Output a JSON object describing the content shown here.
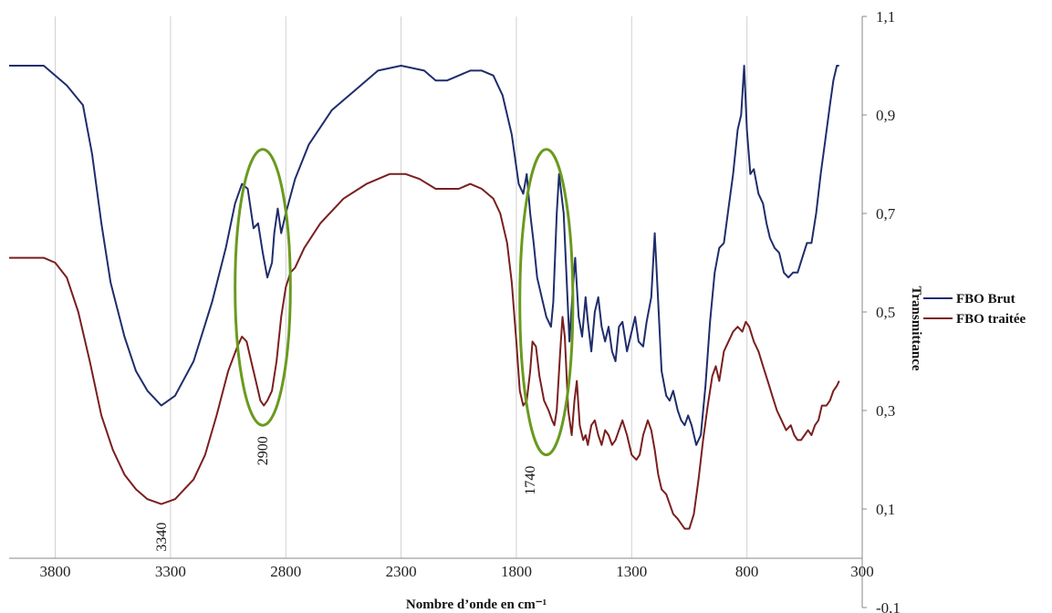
{
  "chart_data": {
    "type": "line",
    "xlabel": "Nombre d’onde en cm⁻¹",
    "ylabel": "Transmittance",
    "xlim": [
      4000,
      300
    ],
    "ylim": [
      -0.1,
      1.1
    ],
    "x_ticks": [
      3800,
      3300,
      2800,
      2300,
      1800,
      1300,
      800,
      300
    ],
    "y_ticks": [
      1.1,
      0.9,
      0.7,
      0.5,
      0.3,
      0.1,
      -0.1
    ],
    "y_tick_labels": [
      "1,1",
      "0,9",
      "0,7",
      "0,5",
      "0,3",
      "0,1",
      "-0,1"
    ],
    "grid": "vertical",
    "legend_position": "right",
    "series": [
      {
        "name": "FBO Brut",
        "color": "#1f2d6b",
        "points": [
          [
            4000,
            1.0
          ],
          [
            3850,
            1.0
          ],
          [
            3750,
            0.96
          ],
          [
            3680,
            0.92
          ],
          [
            3640,
            0.82
          ],
          [
            3600,
            0.68
          ],
          [
            3560,
            0.56
          ],
          [
            3500,
            0.45
          ],
          [
            3450,
            0.38
          ],
          [
            3400,
            0.34
          ],
          [
            3340,
            0.31
          ],
          [
            3280,
            0.33
          ],
          [
            3200,
            0.4
          ],
          [
            3120,
            0.52
          ],
          [
            3060,
            0.63
          ],
          [
            3020,
            0.72
          ],
          [
            2990,
            0.76
          ],
          [
            2965,
            0.75
          ],
          [
            2940,
            0.67
          ],
          [
            2920,
            0.68
          ],
          [
            2900,
            0.62
          ],
          [
            2880,
            0.57
          ],
          [
            2860,
            0.6
          ],
          [
            2850,
            0.66
          ],
          [
            2835,
            0.71
          ],
          [
            2820,
            0.66
          ],
          [
            2800,
            0.7
          ],
          [
            2760,
            0.77
          ],
          [
            2700,
            0.84
          ],
          [
            2600,
            0.91
          ],
          [
            2500,
            0.95
          ],
          [
            2400,
            0.99
          ],
          [
            2300,
            1.0
          ],
          [
            2200,
            0.99
          ],
          [
            2150,
            0.97
          ],
          [
            2100,
            0.97
          ],
          [
            2050,
            0.98
          ],
          [
            2000,
            0.99
          ],
          [
            1950,
            0.99
          ],
          [
            1900,
            0.98
          ],
          [
            1860,
            0.94
          ],
          [
            1820,
            0.86
          ],
          [
            1790,
            0.76
          ],
          [
            1770,
            0.74
          ],
          [
            1755,
            0.78
          ],
          [
            1740,
            0.7
          ],
          [
            1725,
            0.64
          ],
          [
            1710,
            0.57
          ],
          [
            1690,
            0.53
          ],
          [
            1670,
            0.49
          ],
          [
            1650,
            0.47
          ],
          [
            1640,
            0.52
          ],
          [
            1625,
            0.7
          ],
          [
            1615,
            0.78
          ],
          [
            1595,
            0.7
          ],
          [
            1570,
            0.44
          ],
          [
            1555,
            0.55
          ],
          [
            1545,
            0.61
          ],
          [
            1530,
            0.49
          ],
          [
            1515,
            0.45
          ],
          [
            1500,
            0.53
          ],
          [
            1490,
            0.48
          ],
          [
            1475,
            0.42
          ],
          [
            1460,
            0.5
          ],
          [
            1445,
            0.53
          ],
          [
            1430,
            0.47
          ],
          [
            1415,
            0.44
          ],
          [
            1400,
            0.47
          ],
          [
            1385,
            0.42
          ],
          [
            1370,
            0.4
          ],
          [
            1355,
            0.47
          ],
          [
            1340,
            0.48
          ],
          [
            1320,
            0.42
          ],
          [
            1300,
            0.46
          ],
          [
            1285,
            0.49
          ],
          [
            1270,
            0.44
          ],
          [
            1250,
            0.43
          ],
          [
            1235,
            0.48
          ],
          [
            1215,
            0.53
          ],
          [
            1200,
            0.66
          ],
          [
            1185,
            0.52
          ],
          [
            1170,
            0.38
          ],
          [
            1150,
            0.33
          ],
          [
            1135,
            0.32
          ],
          [
            1120,
            0.34
          ],
          [
            1100,
            0.3
          ],
          [
            1085,
            0.28
          ],
          [
            1070,
            0.27
          ],
          [
            1055,
            0.29
          ],
          [
            1040,
            0.27
          ],
          [
            1020,
            0.23
          ],
          [
            1000,
            0.25
          ],
          [
            980,
            0.35
          ],
          [
            960,
            0.48
          ],
          [
            940,
            0.58
          ],
          [
            920,
            0.63
          ],
          [
            900,
            0.64
          ],
          [
            880,
            0.71
          ],
          [
            860,
            0.78
          ],
          [
            840,
            0.87
          ],
          [
            825,
            0.9
          ],
          [
            812,
            1.0
          ],
          [
            800,
            0.87
          ],
          [
            785,
            0.78
          ],
          [
            770,
            0.79
          ],
          [
            750,
            0.74
          ],
          [
            730,
            0.72
          ],
          [
            715,
            0.68
          ],
          [
            700,
            0.65
          ],
          [
            680,
            0.63
          ],
          [
            660,
            0.62
          ],
          [
            640,
            0.58
          ],
          [
            620,
            0.57
          ],
          [
            600,
            0.58
          ],
          [
            580,
            0.58
          ],
          [
            560,
            0.61
          ],
          [
            540,
            0.64
          ],
          [
            520,
            0.64
          ],
          [
            500,
            0.7
          ],
          [
            480,
            0.78
          ],
          [
            460,
            0.85
          ],
          [
            440,
            0.92
          ],
          [
            425,
            0.97
          ],
          [
            410,
            1.0
          ],
          [
            400,
            1.0
          ]
        ]
      },
      {
        "name": "FBO traitée",
        "color": "#7a1f1f",
        "points": [
          [
            4000,
            0.61
          ],
          [
            3850,
            0.61
          ],
          [
            3800,
            0.6
          ],
          [
            3750,
            0.57
          ],
          [
            3700,
            0.5
          ],
          [
            3650,
            0.4
          ],
          [
            3600,
            0.29
          ],
          [
            3550,
            0.22
          ],
          [
            3500,
            0.17
          ],
          [
            3450,
            0.14
          ],
          [
            3400,
            0.12
          ],
          [
            3340,
            0.11
          ],
          [
            3280,
            0.12
          ],
          [
            3200,
            0.16
          ],
          [
            3150,
            0.21
          ],
          [
            3100,
            0.29
          ],
          [
            3050,
            0.38
          ],
          [
            3010,
            0.43
          ],
          [
            2990,
            0.45
          ],
          [
            2970,
            0.44
          ],
          [
            2950,
            0.4
          ],
          [
            2930,
            0.36
          ],
          [
            2910,
            0.32
          ],
          [
            2895,
            0.31
          ],
          [
            2880,
            0.32
          ],
          [
            2860,
            0.34
          ],
          [
            2840,
            0.4
          ],
          [
            2820,
            0.49
          ],
          [
            2800,
            0.55
          ],
          [
            2780,
            0.58
          ],
          [
            2760,
            0.59
          ],
          [
            2720,
            0.63
          ],
          [
            2650,
            0.68
          ],
          [
            2550,
            0.73
          ],
          [
            2450,
            0.76
          ],
          [
            2350,
            0.78
          ],
          [
            2280,
            0.78
          ],
          [
            2220,
            0.77
          ],
          [
            2150,
            0.75
          ],
          [
            2100,
            0.75
          ],
          [
            2050,
            0.75
          ],
          [
            2000,
            0.76
          ],
          [
            1950,
            0.75
          ],
          [
            1900,
            0.73
          ],
          [
            1870,
            0.7
          ],
          [
            1840,
            0.64
          ],
          [
            1820,
            0.56
          ],
          [
            1800,
            0.44
          ],
          [
            1785,
            0.34
          ],
          [
            1770,
            0.31
          ],
          [
            1755,
            0.32
          ],
          [
            1740,
            0.38
          ],
          [
            1730,
            0.44
          ],
          [
            1715,
            0.43
          ],
          [
            1700,
            0.37
          ],
          [
            1680,
            0.32
          ],
          [
            1660,
            0.3
          ],
          [
            1645,
            0.28
          ],
          [
            1635,
            0.27
          ],
          [
            1625,
            0.3
          ],
          [
            1610,
            0.42
          ],
          [
            1600,
            0.49
          ],
          [
            1590,
            0.45
          ],
          [
            1575,
            0.3
          ],
          [
            1560,
            0.25
          ],
          [
            1548,
            0.32
          ],
          [
            1538,
            0.36
          ],
          [
            1525,
            0.27
          ],
          [
            1510,
            0.24
          ],
          [
            1500,
            0.25
          ],
          [
            1490,
            0.23
          ],
          [
            1475,
            0.27
          ],
          [
            1460,
            0.28
          ],
          [
            1445,
            0.25
          ],
          [
            1430,
            0.23
          ],
          [
            1415,
            0.26
          ],
          [
            1400,
            0.25
          ],
          [
            1385,
            0.23
          ],
          [
            1370,
            0.24
          ],
          [
            1355,
            0.26
          ],
          [
            1340,
            0.28
          ],
          [
            1320,
            0.25
          ],
          [
            1300,
            0.21
          ],
          [
            1280,
            0.2
          ],
          [
            1265,
            0.21
          ],
          [
            1250,
            0.25
          ],
          [
            1230,
            0.28
          ],
          [
            1215,
            0.26
          ],
          [
            1200,
            0.22
          ],
          [
            1185,
            0.17
          ],
          [
            1170,
            0.14
          ],
          [
            1150,
            0.13
          ],
          [
            1135,
            0.11
          ],
          [
            1120,
            0.09
          ],
          [
            1100,
            0.08
          ],
          [
            1085,
            0.07
          ],
          [
            1070,
            0.06
          ],
          [
            1050,
            0.06
          ],
          [
            1030,
            0.09
          ],
          [
            1010,
            0.16
          ],
          [
            990,
            0.24
          ],
          [
            970,
            0.31
          ],
          [
            950,
            0.37
          ],
          [
            935,
            0.39
          ],
          [
            920,
            0.36
          ],
          [
            900,
            0.42
          ],
          [
            880,
            0.44
          ],
          [
            860,
            0.46
          ],
          [
            840,
            0.47
          ],
          [
            820,
            0.46
          ],
          [
            805,
            0.48
          ],
          [
            790,
            0.47
          ],
          [
            770,
            0.44
          ],
          [
            750,
            0.42
          ],
          [
            730,
            0.39
          ],
          [
            710,
            0.36
          ],
          [
            690,
            0.33
          ],
          [
            670,
            0.3
          ],
          [
            650,
            0.28
          ],
          [
            630,
            0.26
          ],
          [
            610,
            0.27
          ],
          [
            595,
            0.25
          ],
          [
            580,
            0.24
          ],
          [
            565,
            0.24
          ],
          [
            550,
            0.25
          ],
          [
            535,
            0.26
          ],
          [
            520,
            0.25
          ],
          [
            505,
            0.27
          ],
          [
            490,
            0.28
          ],
          [
            475,
            0.31
          ],
          [
            455,
            0.31
          ],
          [
            440,
            0.32
          ],
          [
            425,
            0.34
          ],
          [
            410,
            0.35
          ],
          [
            400,
            0.36
          ]
        ]
      }
    ],
    "annotations": [
      {
        "label": "3340",
        "x": 3340,
        "y": 0.11
      },
      {
        "label": "2900",
        "x": 2900,
        "y": 0.27
      },
      {
        "label": "1740",
        "x": 1740,
        "y": 0.21
      }
    ],
    "highlight_ellipses": [
      {
        "cx": 2900,
        "cy": 0.55,
        "rx": 240,
        "ry": 0.28,
        "color": "#6a9a1f"
      },
      {
        "cx": 1670,
        "cy": 0.52,
        "rx": 230,
        "ry": 0.31,
        "color": "#6a9a1f"
      }
    ]
  }
}
